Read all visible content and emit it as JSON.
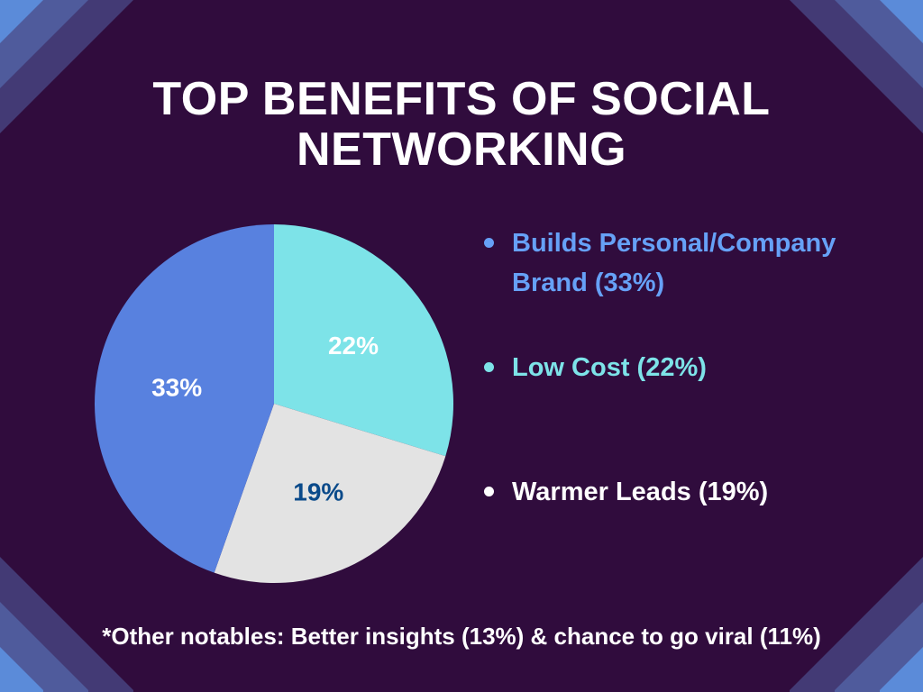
{
  "slide": {
    "background": "#300c3d",
    "corner_stripes": [
      "#5b8bd9",
      "#4f5b9c",
      "#433a75"
    ]
  },
  "title": {
    "line1": "TOP BENEFITS OF SOCIAL",
    "line2": "NETWORKING"
  },
  "legend": {
    "items": [
      {
        "line1": "Builds Personal/Company",
        "line2": "Brand (33%)",
        "color": "#66a1f7"
      },
      {
        "line1": "Low Cost (22%)",
        "line2": "",
        "color": "#7de3e8"
      },
      {
        "line1": "Warmer Leads  (19%)",
        "line2": "",
        "color": "#ffffff"
      }
    ]
  },
  "footnote": "*Other notables:  Better insights (13%) & chance to go viral (11%)",
  "chart_data": {
    "type": "pie",
    "title": "TOP BENEFITS OF SOCIAL NETWORKING",
    "categories": [
      "Low Cost",
      "Warmer Leads",
      "Builds Personal/Company Brand"
    ],
    "values": [
      22,
      19,
      33
    ],
    "labels": [
      "22%",
      "19%",
      "33%"
    ],
    "colors": [
      "#7de3e8",
      "#e3e3e3",
      "#5881df"
    ],
    "label_colors": [
      "#ffffff",
      "#0a4a8a",
      "#ffffff"
    ],
    "start_angle_deg": 0,
    "direction": "clockwise",
    "legend_position": "right",
    "other_notables": [
      {
        "name": "Better insights",
        "value": 13
      },
      {
        "name": "Chance to go viral",
        "value": 11
      }
    ]
  }
}
